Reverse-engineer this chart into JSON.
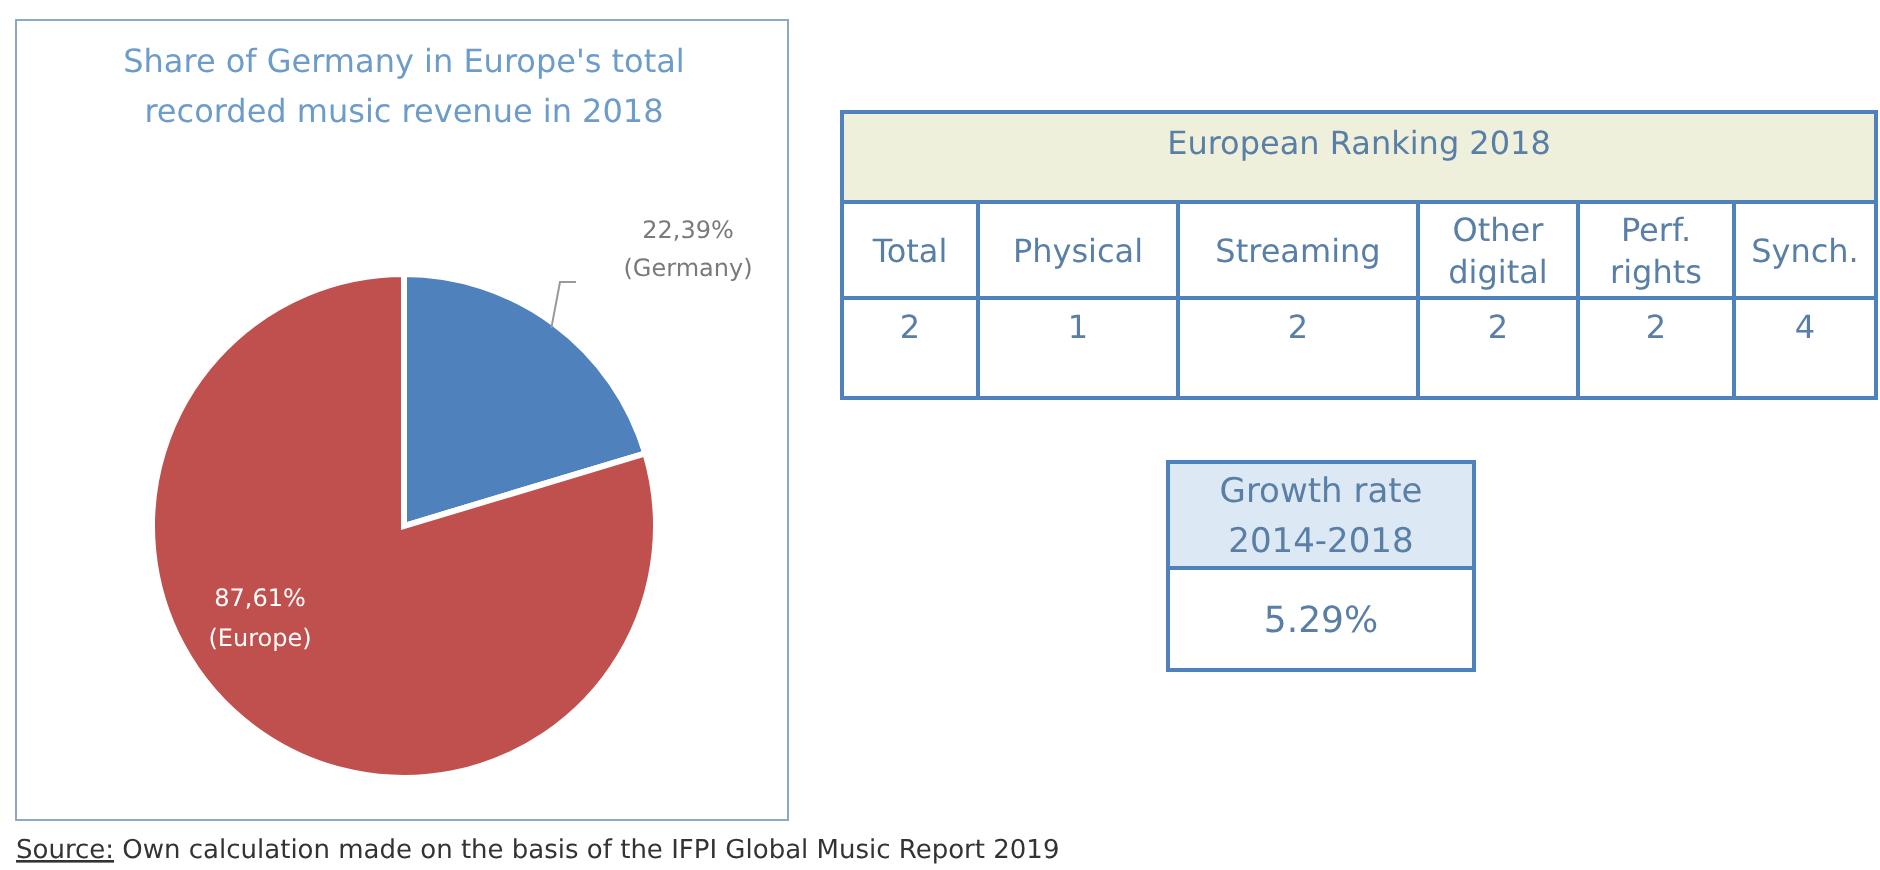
{
  "chart_data": [
    {
      "type": "pie",
      "title": "Share of Germany in Europe's total recorded music revenue in 2018",
      "categories": [
        "(Germany)",
        "(Europe)"
      ],
      "values": [
        22.39,
        87.61
      ],
      "value_labels": [
        "22,39%",
        "87,61%"
      ],
      "colors": [
        "#4f81bd",
        "#c0504d"
      ],
      "annotations": [
        "Source: Own calculation made on the basis of the IFPI Global Music Report 2019"
      ]
    },
    {
      "type": "other",
      "title": "European Ranking 2018",
      "categories": [
        "Total",
        "Physical",
        "Streaming",
        "Other digital",
        "Perf. rights",
        "Synch."
      ],
      "values": [
        2,
        1,
        2,
        2,
        2,
        4
      ],
      "data_labels": true
    },
    {
      "type": "other",
      "title": "Growth rate 2014-2018",
      "values": [
        5.29
      ],
      "value_labels": [
        "5.29%"
      ]
    }
  ]
}
